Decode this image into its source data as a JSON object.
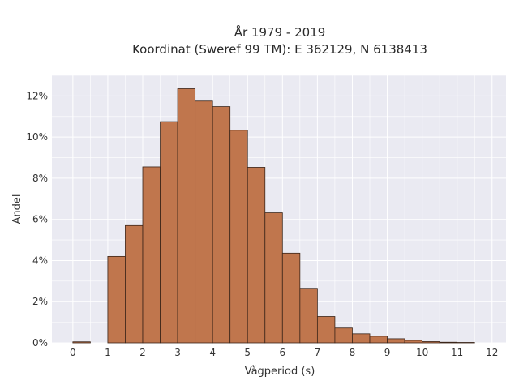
{
  "chart_data": {
    "type": "bar",
    "title_line1": "År 1979 - 2019",
    "title_line2": "Koordinat (Sweref 99 TM): E 362129, N 6138413",
    "xlabel": "Vågperiod (s)",
    "ylabel": "Andel",
    "xlim": [
      -0.6,
      12.4
    ],
    "ylim": [
      0,
      0.13
    ],
    "x_ticks": [
      0,
      1,
      2,
      3,
      4,
      5,
      6,
      7,
      8,
      9,
      10,
      11,
      12
    ],
    "x_tick_labels": [
      "0",
      "1",
      "2",
      "3",
      "4",
      "5",
      "6",
      "7",
      "8",
      "9",
      "10",
      "11",
      "12"
    ],
    "y_ticks": [
      0,
      0.02,
      0.04,
      0.06,
      0.08,
      0.1,
      0.12
    ],
    "y_tick_labels": [
      "0%",
      "2%",
      "4%",
      "6%",
      "8%",
      "10%",
      "12%"
    ],
    "bin_width": 0.5,
    "bin_starts": [
      0,
      1,
      1.5,
      2,
      2.5,
      3,
      3.5,
      4,
      4.5,
      5,
      5.5,
      6,
      6.5,
      7,
      7.5,
      8,
      8.5,
      9,
      9.5,
      10,
      10.5,
      11
    ],
    "values": [
      0.0005,
      0.042,
      0.057,
      0.0855,
      0.1075,
      0.1235,
      0.1175,
      0.1148,
      0.1033,
      0.0853,
      0.0632,
      0.0436,
      0.0265,
      0.0128,
      0.0072,
      0.0044,
      0.0032,
      0.002,
      0.0012,
      0.0006,
      0.0003,
      0.0002
    ],
    "grid": true,
    "colors": {
      "bar_fill": "#c0764d",
      "bar_edge": "#3a2418",
      "plot_bg": "#eaeaf2",
      "grid": "#ffffff"
    }
  }
}
